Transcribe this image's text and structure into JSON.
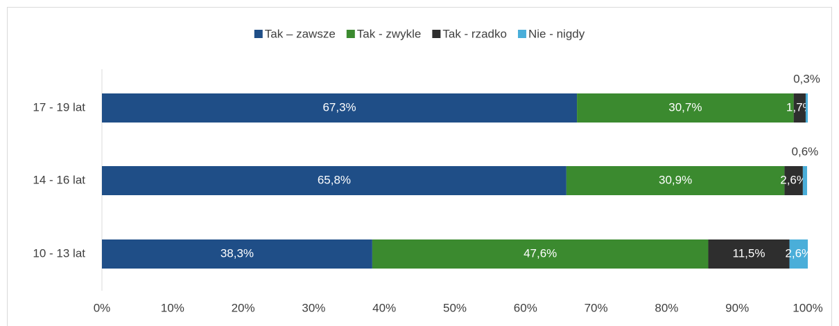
{
  "chart_data": {
    "type": "stacked-bar-horizontal",
    "categories": [
      "17 - 19 lat",
      "14 - 16 lat",
      "10 - 13 lat"
    ],
    "series": [
      {
        "name": "Tak – zawsze",
        "color": "#1f4e87",
        "values": [
          67.3,
          65.8,
          38.3
        ],
        "value_labels": [
          "67,3%",
          "65,8%",
          "38,3%"
        ]
      },
      {
        "name": "Tak - zwykle",
        "color": "#3b8a2f",
        "values": [
          30.7,
          30.9,
          47.6
        ],
        "value_labels": [
          "30,7%",
          "30,9%",
          "47,6%"
        ]
      },
      {
        "name": "Tak - rzadko",
        "color": "#2e2e2e",
        "values": [
          1.7,
          2.6,
          11.5
        ],
        "value_labels": [
          "1,7%",
          "2,6%",
          "11,5%"
        ]
      },
      {
        "name": "Nie - nigdy",
        "color": "#4aaed9",
        "values": [
          0.3,
          0.6,
          2.6
        ],
        "value_labels": [
          "0,3%",
          "0,6%",
          "2,6%"
        ]
      }
    ],
    "xlim": [
      0,
      100
    ],
    "xticks": [
      {
        "value": 0,
        "label": "0%"
      },
      {
        "value": 10,
        "label": "10%"
      },
      {
        "value": 20,
        "label": "20%"
      },
      {
        "value": 30,
        "label": "30%"
      },
      {
        "value": 40,
        "label": "40%"
      },
      {
        "value": 50,
        "label": "50%"
      },
      {
        "value": 60,
        "label": "60%"
      },
      {
        "value": 70,
        "label": "70%"
      },
      {
        "value": 80,
        "label": "80%"
      },
      {
        "value": 90,
        "label": "90%"
      },
      {
        "value": 100,
        "label": "100%"
      }
    ],
    "legend": "top"
  }
}
